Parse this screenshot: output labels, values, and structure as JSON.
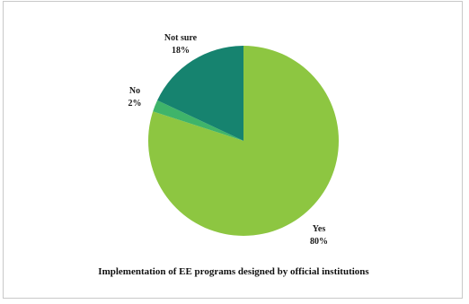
{
  "chart_data": {
    "type": "pie",
    "title": "",
    "caption": "Implementation of EE programs designed by official institutions",
    "slices": [
      {
        "label": "Yes",
        "value": 80,
        "value_label": "80%",
        "color": "#8dc641"
      },
      {
        "label": "No",
        "value": 2,
        "value_label": "2%",
        "color": "#3fb46a"
      },
      {
        "label": "Not sure",
        "value": 18,
        "value_label": "18%",
        "color": "#16836f"
      }
    ],
    "start_angle": "12 o'clock",
    "direction": "clockwise",
    "legend": "none",
    "labels": "outside"
  }
}
